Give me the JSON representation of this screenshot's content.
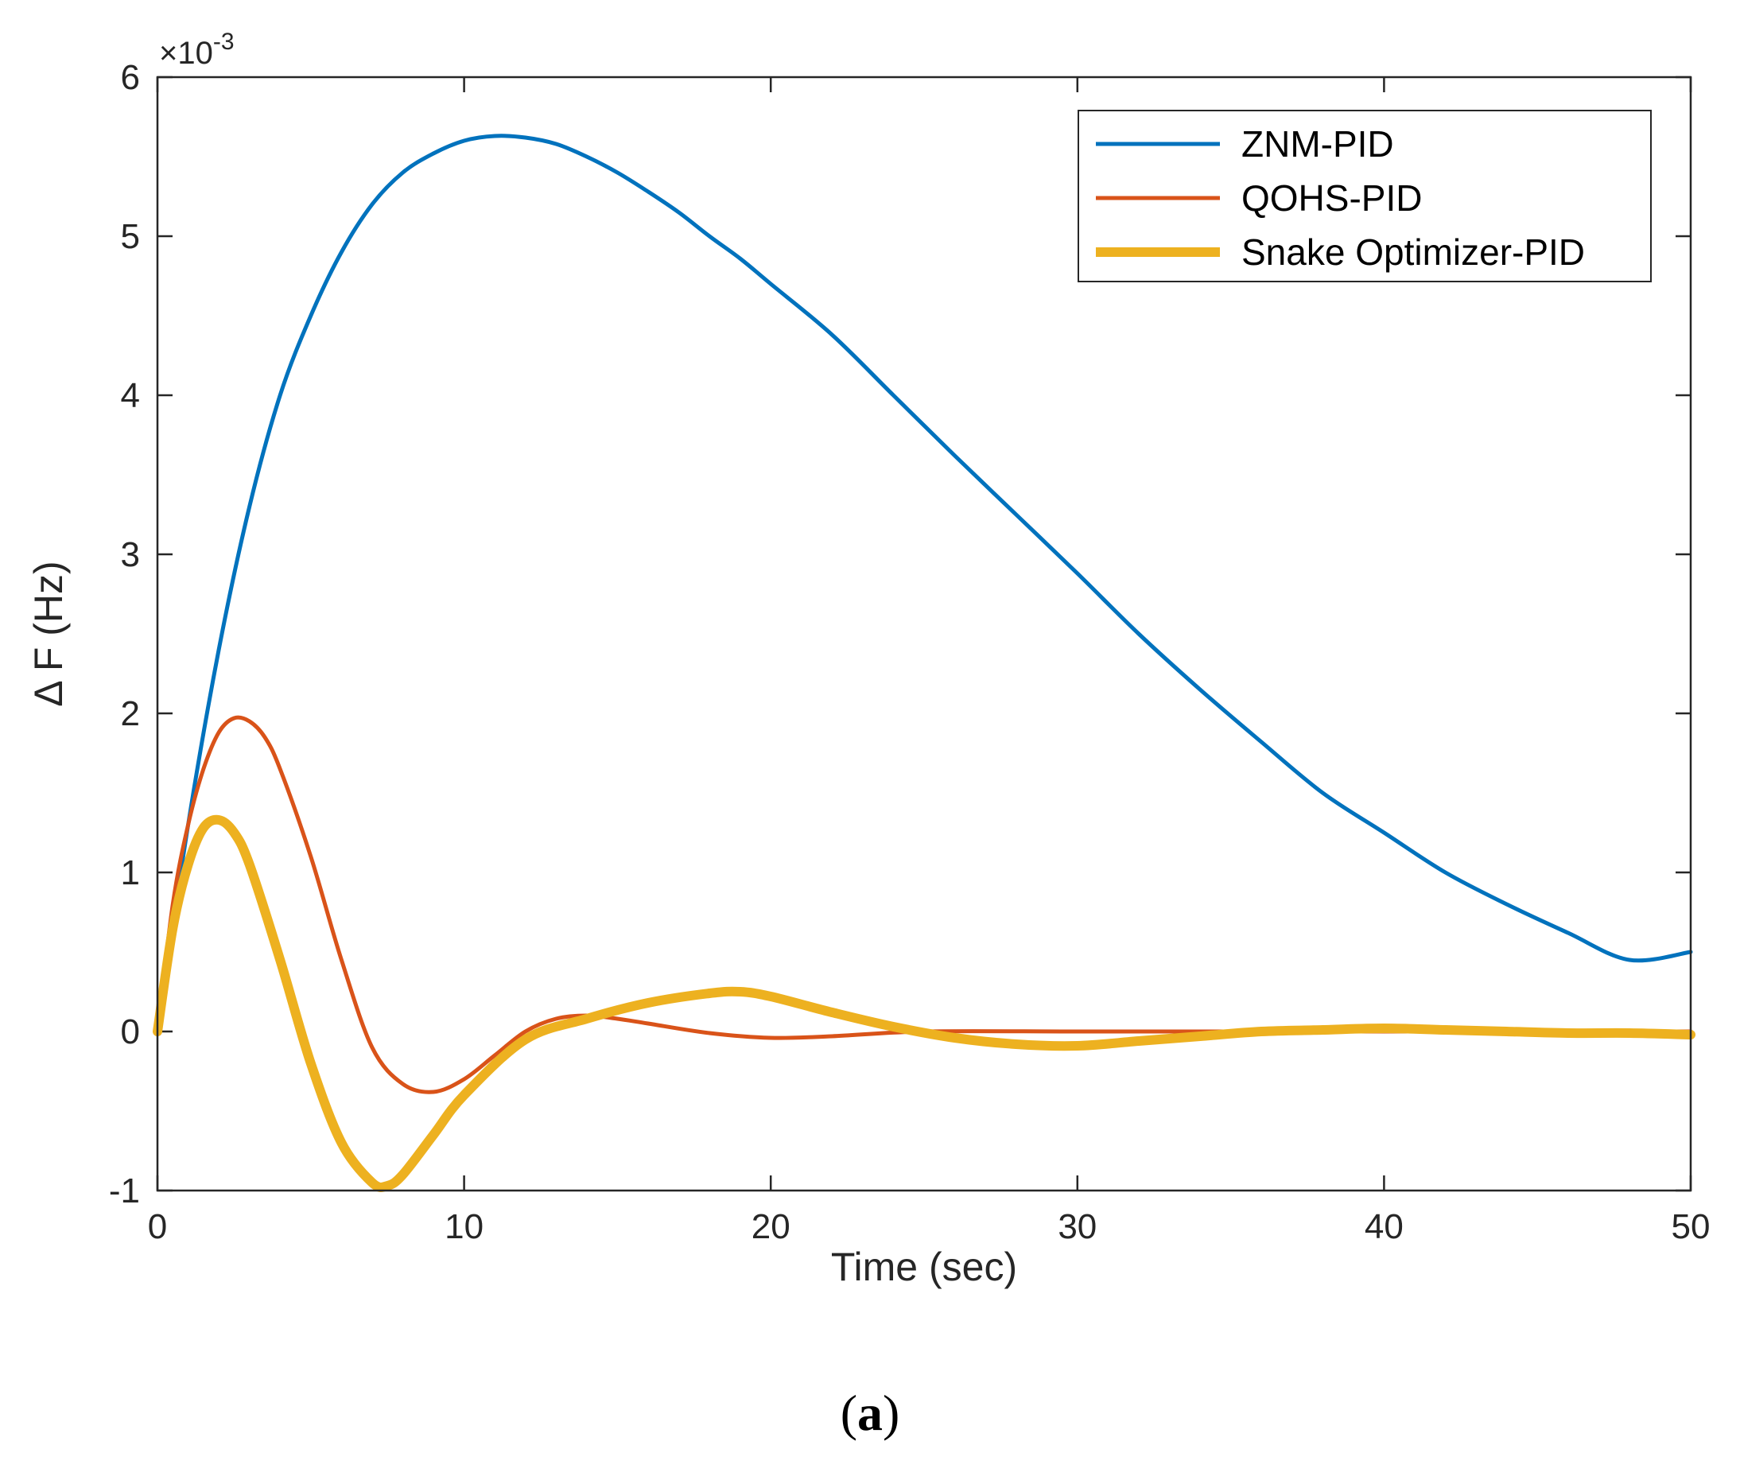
{
  "chart_data": {
    "type": "line",
    "title": "",
    "xlabel": "Time (sec)",
    "ylabel": "Δ F (Hz)",
    "y_multiplier_base": "×10",
    "y_multiplier_exp": "-3",
    "xlim": [
      0,
      50
    ],
    "ylim": [
      -1,
      6
    ],
    "xticks": [
      0,
      10,
      20,
      30,
      40,
      50
    ],
    "yticks": [
      -1,
      0,
      1,
      2,
      3,
      4,
      5,
      6
    ],
    "legend_position": "top-right",
    "series": [
      {
        "name": "ZNM-PID",
        "color": "#0072BD",
        "points": [
          [
            0,
            0
          ],
          [
            1,
            1.3
          ],
          [
            2,
            2.4
          ],
          [
            3,
            3.3
          ],
          [
            4,
            4.0
          ],
          [
            5,
            4.5
          ],
          [
            6,
            4.9
          ],
          [
            7,
            5.2
          ],
          [
            8,
            5.4
          ],
          [
            9,
            5.52
          ],
          [
            10,
            5.6
          ],
          [
            11,
            5.63
          ],
          [
            12,
            5.62
          ],
          [
            13,
            5.58
          ],
          [
            14,
            5.5
          ],
          [
            15,
            5.4
          ],
          [
            16,
            5.28
          ],
          [
            17,
            5.15
          ],
          [
            18,
            5.0
          ],
          [
            19,
            4.86
          ],
          [
            20,
            4.7
          ],
          [
            22,
            4.38
          ],
          [
            24,
            4.0
          ],
          [
            26,
            3.62
          ],
          [
            28,
            3.25
          ],
          [
            30,
            2.88
          ],
          [
            32,
            2.5
          ],
          [
            34,
            2.15
          ],
          [
            36,
            1.82
          ],
          [
            38,
            1.5
          ],
          [
            40,
            1.25
          ],
          [
            42,
            1.0
          ],
          [
            44,
            0.8
          ],
          [
            46,
            0.62
          ],
          [
            48,
            0.45
          ],
          [
            50,
            0.5
          ]
        ]
      },
      {
        "name": "QOHS-PID",
        "color": "#D95319",
        "points": [
          [
            0,
            0
          ],
          [
            0.5,
            0.8
          ],
          [
            1,
            1.3
          ],
          [
            1.5,
            1.65
          ],
          [
            2,
            1.88
          ],
          [
            2.5,
            1.97
          ],
          [
            3,
            1.95
          ],
          [
            3.5,
            1.85
          ],
          [
            4,
            1.65
          ],
          [
            5,
            1.1
          ],
          [
            6,
            0.45
          ],
          [
            7,
            -0.1
          ],
          [
            8,
            -0.33
          ],
          [
            9,
            -0.38
          ],
          [
            10,
            -0.3
          ],
          [
            11,
            -0.15
          ],
          [
            12,
            0.0
          ],
          [
            13,
            0.08
          ],
          [
            14,
            0.1
          ],
          [
            15,
            0.08
          ],
          [
            16,
            0.05
          ],
          [
            18,
            -0.01
          ],
          [
            20,
            -0.04
          ],
          [
            22,
            -0.03
          ],
          [
            25,
            0.0
          ],
          [
            30,
            0.0
          ],
          [
            35,
            0.0
          ],
          [
            40,
            0.0
          ],
          [
            45,
            0.0
          ],
          [
            50,
            0.0
          ]
        ]
      },
      {
        "name": "Snake Optimizer-PID",
        "color": "#EDB120",
        "points": [
          [
            0,
            0
          ],
          [
            0.5,
            0.65
          ],
          [
            1,
            1.05
          ],
          [
            1.5,
            1.28
          ],
          [
            2,
            1.33
          ],
          [
            2.5,
            1.25
          ],
          [
            3,
            1.05
          ],
          [
            4,
            0.45
          ],
          [
            5,
            -0.2
          ],
          [
            6,
            -0.7
          ],
          [
            7,
            -0.95
          ],
          [
            7.5,
            -0.97
          ],
          [
            8,
            -0.9
          ],
          [
            9,
            -0.65
          ],
          [
            10,
            -0.4
          ],
          [
            12,
            -0.05
          ],
          [
            14,
            0.08
          ],
          [
            16,
            0.18
          ],
          [
            18,
            0.24
          ],
          [
            19,
            0.25
          ],
          [
            20,
            0.22
          ],
          [
            22,
            0.12
          ],
          [
            24,
            0.03
          ],
          [
            26,
            -0.04
          ],
          [
            28,
            -0.08
          ],
          [
            30,
            -0.09
          ],
          [
            32,
            -0.06
          ],
          [
            34,
            -0.03
          ],
          [
            36,
            0.0
          ],
          [
            38,
            0.01
          ],
          [
            40,
            0.02
          ],
          [
            42,
            0.01
          ],
          [
            44,
            0.0
          ],
          [
            46,
            -0.01
          ],
          [
            48,
            -0.01
          ],
          [
            50,
            -0.02
          ]
        ]
      }
    ]
  },
  "caption": {
    "open": "(",
    "label": "a",
    "close": ")"
  }
}
